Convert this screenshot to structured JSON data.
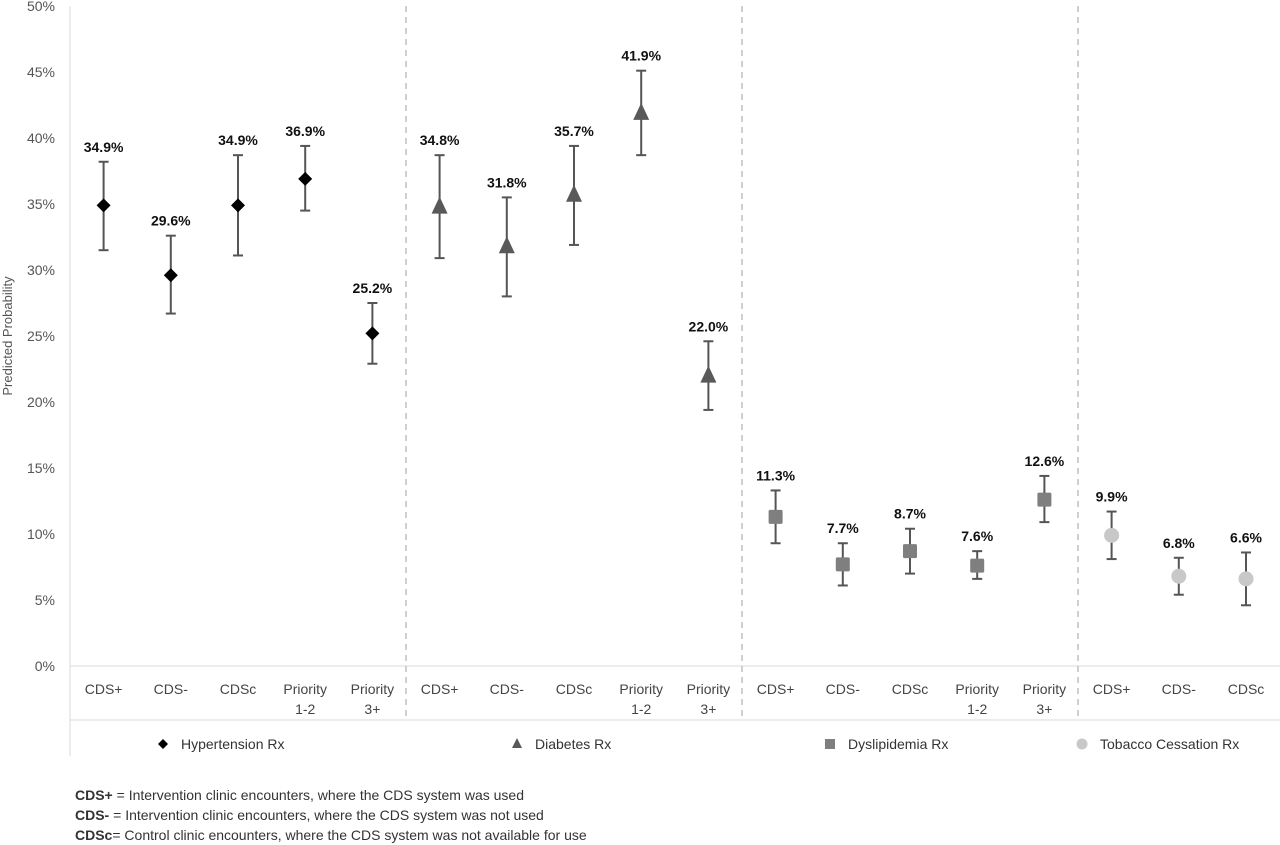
{
  "chart_data": {
    "type": "scatter",
    "ylabel": "Predicted Probability",
    "ylim": [
      0,
      50
    ],
    "yticks": [
      "0%",
      "5%",
      "10%",
      "15%",
      "20%",
      "25%",
      "30%",
      "35%",
      "40%",
      "45%",
      "50%"
    ],
    "grid": false,
    "legend_position": "bottom",
    "series": [
      {
        "name": "Hypertension Rx",
        "marker": "diamond",
        "color": "#000000",
        "categories": [
          "CDS+",
          "CDS-",
          "CDSc",
          "Priority 1-2",
          "Priority 3+"
        ],
        "values": [
          34.9,
          29.6,
          34.9,
          36.9,
          25.2
        ],
        "lower": [
          31.5,
          26.7,
          31.1,
          34.5,
          22.9
        ],
        "upper": [
          38.2,
          32.6,
          38.7,
          39.4,
          27.5
        ],
        "labels": [
          "34.9%",
          "29.6%",
          "34.9%",
          "36.9%",
          "25.2%"
        ]
      },
      {
        "name": "Diabetes Rx",
        "marker": "triangle",
        "color": "#595959",
        "categories": [
          "CDS+",
          "CDS-",
          "CDSc",
          "Priority 1-2",
          "Priority 3+"
        ],
        "values": [
          34.8,
          31.8,
          35.7,
          41.9,
          22.0
        ],
        "lower": [
          30.9,
          28.0,
          31.9,
          38.7,
          19.4
        ],
        "upper": [
          38.7,
          35.5,
          39.4,
          45.1,
          24.6
        ],
        "labels": [
          "34.8%",
          "31.8%",
          "35.7%",
          "41.9%",
          "22.0%"
        ]
      },
      {
        "name": "Dyslipidemia Rx",
        "marker": "square",
        "color": "#7f7f7f",
        "categories": [
          "CDS+",
          "CDS-",
          "CDSc",
          "Priority 1-2",
          "Priority 3+"
        ],
        "values": [
          11.3,
          7.7,
          8.7,
          7.6,
          12.6
        ],
        "lower": [
          9.3,
          6.1,
          7.0,
          6.6,
          10.9
        ],
        "upper": [
          13.3,
          9.3,
          10.4,
          8.7,
          14.4
        ],
        "labels": [
          "11.3%",
          "7.7%",
          "8.7%",
          "7.6%",
          "12.6%"
        ]
      },
      {
        "name": "Tobacco Cessation Rx",
        "marker": "circle",
        "color": "#c8c8c8",
        "categories": [
          "CDS+",
          "CDS-",
          "CDSc"
        ],
        "values": [
          9.9,
          6.8,
          6.6
        ],
        "lower": [
          8.1,
          5.4,
          4.6
        ],
        "upper": [
          11.7,
          8.2,
          8.6
        ],
        "labels": [
          "9.9%",
          "6.8%",
          "6.6%"
        ]
      }
    ]
  },
  "footnotes": [
    {
      "term": "CDS+",
      "text": " = Intervention clinic encounters, where the CDS system was used"
    },
    {
      "term": "CDS-",
      "text": " = Intervention clinic encounters, where the CDS system was not used"
    },
    {
      "term": "CDSc",
      "text": "= Control clinic encounters, where the CDS system was not available for use"
    }
  ]
}
